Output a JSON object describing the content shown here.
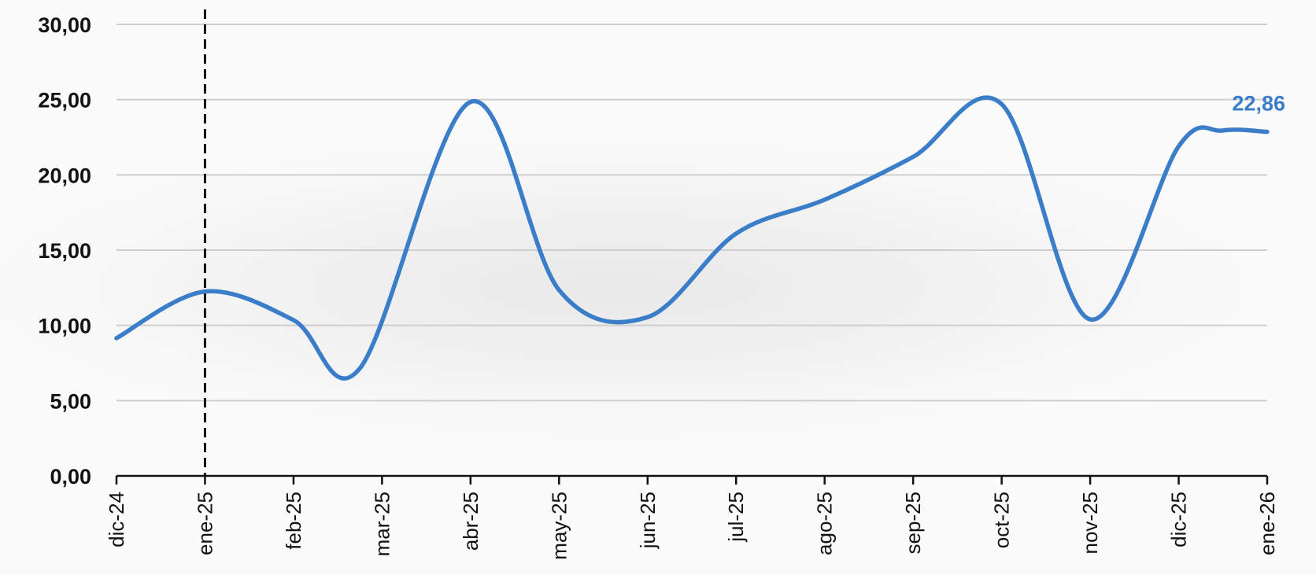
{
  "chart_data": {
    "type": "line",
    "x": [
      "dic-24",
      "ene-25",
      "feb-25",
      "mar-25",
      "abr-25",
      "may-25",
      "jun-25",
      "jul-25",
      "ago-25",
      "sep-25",
      "oct-25",
      "nov-25",
      "dic-25",
      "ene-26"
    ],
    "y_tick_labels": [
      "0,00",
      "5,00",
      "10,00",
      "15,00",
      "20,00",
      "25,00",
      "30,00"
    ],
    "y_ticks": [
      0,
      5,
      10,
      15,
      20,
      25,
      30
    ],
    "ylim": [
      0,
      30
    ],
    "grid": true,
    "series": [
      {
        "points": [
          {
            "x": 0.0,
            "y": 9.15
          },
          {
            "x": 1.0,
            "y": 12.25
          },
          {
            "x": 2.0,
            "y": 10.35
          },
          {
            "x": 2.75,
            "y": 7.15
          },
          {
            "x": 4.0,
            "y": 24.85
          },
          {
            "x": 5.0,
            "y": 12.35
          },
          {
            "x": 6.0,
            "y": 10.55
          },
          {
            "x": 7.0,
            "y": 16.1
          },
          {
            "x": 8.0,
            "y": 18.35
          },
          {
            "x": 9.0,
            "y": 21.2
          },
          {
            "x": 10.0,
            "y": 24.7
          },
          {
            "x": 11.0,
            "y": 10.4
          },
          {
            "x": 12.0,
            "y": 21.9
          },
          {
            "x": 12.5,
            "y": 22.95
          },
          {
            "x": 13.0,
            "y": 22.86
          }
        ]
      }
    ],
    "last_value_label": "22,86",
    "reference_line_category": "ene-25",
    "colors": {
      "line": "#3A7DC9",
      "label": "#3A7DC9",
      "grid": "#cfcfcf",
      "axis": "#111111"
    }
  }
}
